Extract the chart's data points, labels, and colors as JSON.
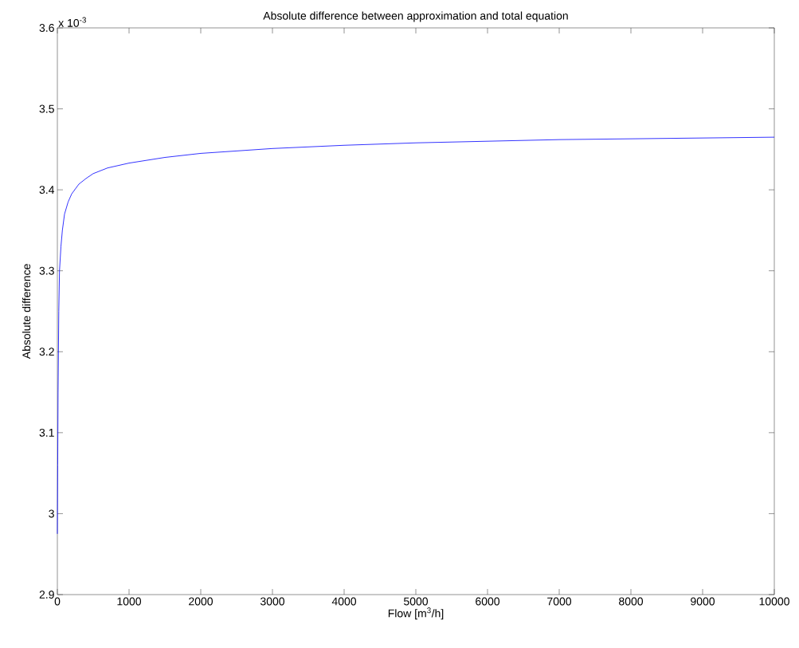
{
  "chart_data": {
    "type": "line",
    "title": "Absolute difference between approximation and total equation",
    "xlabel": "Flow [m$^{3}$/h]",
    "ylabel": "Absolute difference",
    "annotations": [
      "x 10$^{-3}$"
    ],
    "x": [
      0,
      5,
      10,
      20,
      30,
      50,
      70,
      100,
      150,
      200,
      300,
      400,
      500,
      700,
      1000,
      1500,
      2000,
      3000,
      4000,
      5000,
      6000,
      7000,
      8000,
      9000,
      10000
    ],
    "series": [
      {
        "color": "#0000ff",
        "values": [
          2.975,
          3.06,
          3.15,
          3.25,
          3.3,
          3.33,
          3.35,
          3.37,
          3.385,
          3.395,
          3.407,
          3.414,
          3.42,
          3.427,
          3.433,
          3.44,
          3.445,
          3.451,
          3.455,
          3.458,
          3.46,
          3.462,
          3.463,
          3.464,
          3.465
        ]
      }
    ],
    "xlim": [
      0,
      10000
    ],
    "xticks": [
      0,
      1000,
      2000,
      3000,
      4000,
      5000,
      6000,
      7000,
      8000,
      9000,
      10000
    ],
    "ylim": [
      2.9,
      3.6
    ],
    "yticks": [
      2.9,
      3,
      3.1,
      3.2,
      3.3,
      3.4,
      3.5,
      3.6
    ],
    "grid": false,
    "marker": "none",
    "line_style": "solid"
  }
}
